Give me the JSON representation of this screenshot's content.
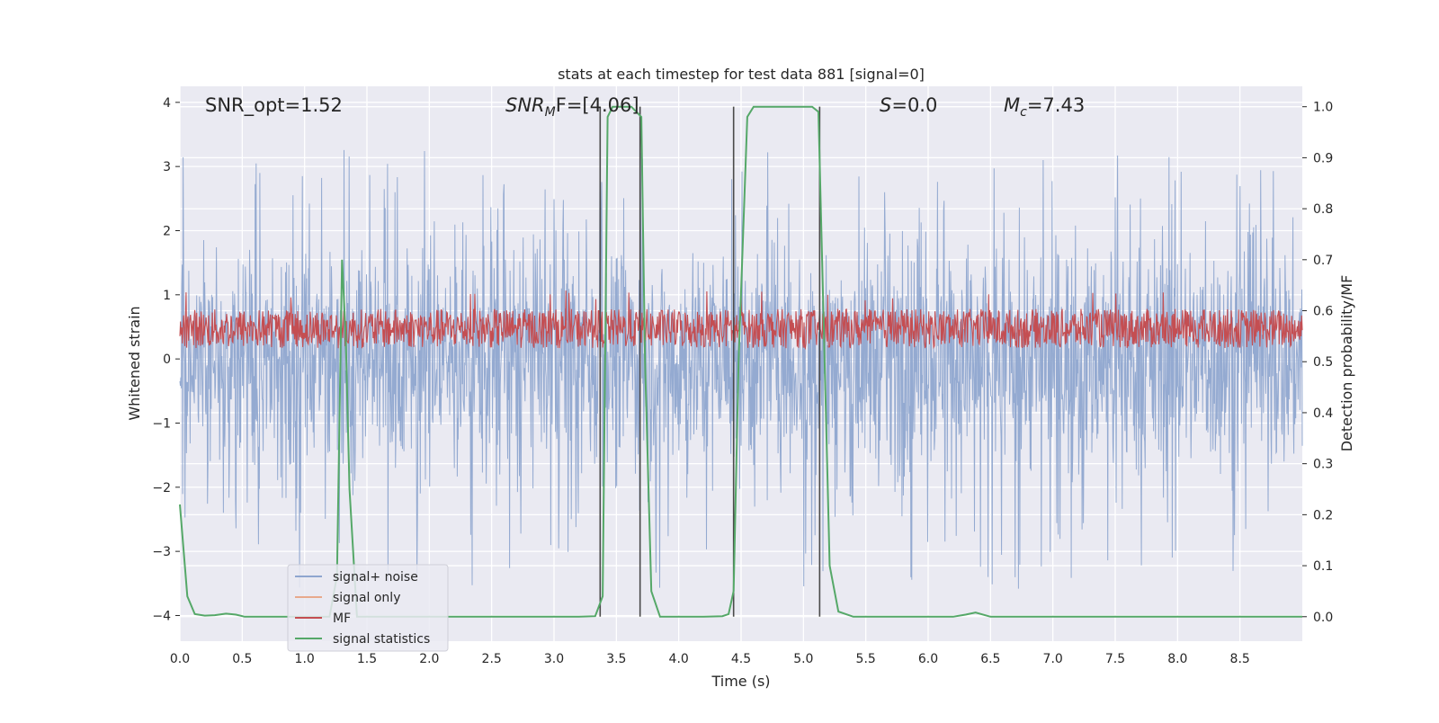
{
  "chart_data": {
    "type": "line",
    "title": "stats at each timestep for test data 881 [signal=0]",
    "xlabel": "Time (s)",
    "ylabel_left": "Whitened strain",
    "ylabel_right": "Detection probability/MF",
    "xlim": [
      0.0,
      9.0
    ],
    "ylim_left": [
      -4.4,
      4.25
    ],
    "ylim_right": [
      -0.048,
      1.04
    ],
    "x_ticks": [
      "0.0",
      "0.5",
      "1.0",
      "1.5",
      "2.0",
      "2.5",
      "3.0",
      "3.5",
      "4.0",
      "4.5",
      "5.0",
      "5.5",
      "6.0",
      "6.5",
      "7.0",
      "7.5",
      "8.0",
      "8.5"
    ],
    "y_ticks_left": [
      "4",
      "3",
      "2",
      "1",
      "0",
      "−1",
      "−2",
      "−3",
      "−4"
    ],
    "y_ticks_right": [
      "1.0",
      "0.9",
      "0.8",
      "0.7",
      "0.6",
      "0.5",
      "0.4",
      "0.3",
      "0.2",
      "0.1",
      "0.0"
    ],
    "grid": true,
    "legend_position": "lower-left",
    "annotations": {
      "snr_opt": "SNR_opt=1.52",
      "snr_mf_base": "SNR",
      "snr_mf_sub": "M",
      "snr_mf_tail": "F=[4.06]",
      "s_var": "S",
      "s_val": "=0.0",
      "mc_var": "M",
      "mc_sub": "c",
      "mc_val": "=7.43"
    },
    "series": [
      {
        "name": "signal+ noise",
        "axis": "left",
        "color": "#8fa6cf",
        "noise_range": [
          -3.6,
          3.3
        ],
        "typical_range": [
          -1.7,
          2.3
        ]
      },
      {
        "name": "signal only",
        "axis": "left",
        "color": "#e8a98c",
        "values": []
      },
      {
        "name": "MF",
        "axis": "right",
        "color": "#c44e52",
        "baseline": 0.55,
        "range": [
          0.51,
          0.62
        ]
      },
      {
        "name": "signal statistics",
        "axis": "right",
        "color": "#55a868",
        "x": [
          0.0,
          0.06,
          0.12,
          0.2,
          0.28,
          0.37,
          0.45,
          0.52,
          0.6,
          1.0,
          1.2,
          1.26,
          1.3,
          1.33,
          1.36,
          1.42,
          1.5,
          1.8,
          2.5,
          3.0,
          3.2,
          3.33,
          3.39,
          3.43,
          3.47,
          3.55,
          3.62,
          3.7,
          3.73,
          3.78,
          3.85,
          4.2,
          4.35,
          4.4,
          4.44,
          4.48,
          4.55,
          4.6,
          4.8,
          5.0,
          5.07,
          5.12,
          5.17,
          5.21,
          5.28,
          5.4,
          6.0,
          6.2,
          6.3,
          6.38,
          6.5,
          7.0,
          8.0,
          9.0
        ],
        "values": [
          0.22,
          0.04,
          0.005,
          0.002,
          0.003,
          0.006,
          0.004,
          0.0,
          0.0,
          0.0,
          0.0,
          0.08,
          0.7,
          0.55,
          0.25,
          0.0,
          0.0,
          0.0,
          0.0,
          0.0,
          0.0,
          0.001,
          0.04,
          0.98,
          1.0,
          1.0,
          1.0,
          0.98,
          0.5,
          0.05,
          0.0,
          0.0,
          0.001,
          0.005,
          0.05,
          0.5,
          0.98,
          1.0,
          1.0,
          1.0,
          1.0,
          0.99,
          0.5,
          0.1,
          0.01,
          0.0,
          0.0,
          0.0,
          0.004,
          0.008,
          0.0,
          0.0,
          0.0,
          0.0
        ]
      }
    ],
    "vertical_lines_x": [
      3.37,
      3.69,
      4.44,
      5.13
    ]
  }
}
